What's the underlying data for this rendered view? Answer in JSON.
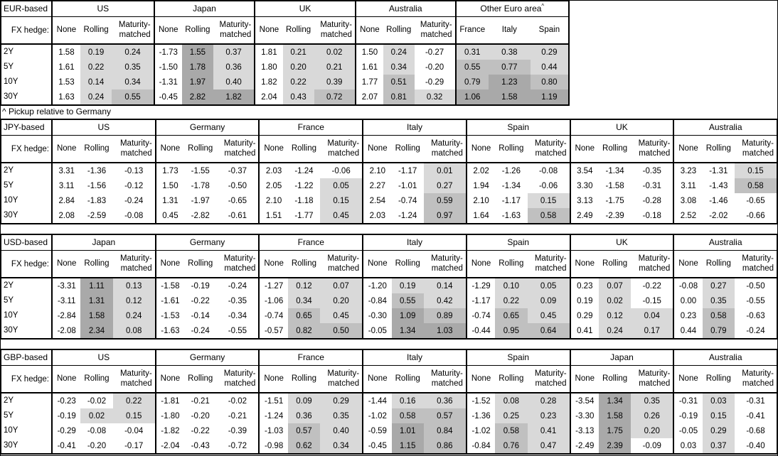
{
  "page": {
    "note": "^ Pickup relative to Germany"
  },
  "labels": {
    "fx_hedge": "FX hedge:",
    "tenors": [
      "2Y",
      "5Y",
      "10Y",
      "30Y"
    ]
  },
  "col_headers": [
    "None",
    "Rolling",
    "Maturity-matched"
  ],
  "colors": {
    "shade_light": "#d9d9d9",
    "shade_mid": "#c0c0c0",
    "shade_dark": "#a9a9a9",
    "border": "#000000"
  },
  "tables": [
    {
      "base": "EUR-based",
      "groups": [
        {
          "name": "US",
          "rows": [
            [
              "1.58",
              "0.19",
              "0.24"
            ],
            [
              "1.61",
              "0.22",
              "0.35"
            ],
            [
              "1.53",
              "0.14",
              "0.34"
            ],
            [
              "1.63",
              "0.24",
              "0.55"
            ]
          ]
        },
        {
          "name": "Japan",
          "rows": [
            [
              "-1.73",
              "1.55",
              "0.37"
            ],
            [
              "-1.50",
              "1.78",
              "0.36"
            ],
            [
              "-1.31",
              "1.97",
              "0.40"
            ],
            [
              "-0.45",
              "2.82",
              "1.82"
            ]
          ]
        },
        {
          "name": "UK",
          "rows": [
            [
              "1.81",
              "0.21",
              "0.02"
            ],
            [
              "1.80",
              "0.20",
              "0.21"
            ],
            [
              "1.82",
              "0.22",
              "0.39"
            ],
            [
              "2.04",
              "0.43",
              "0.72"
            ]
          ]
        },
        {
          "name": "Australia",
          "rows": [
            [
              "1.50",
              "0.24",
              "-0.27"
            ],
            [
              "1.61",
              "0.34",
              "-0.20"
            ],
            [
              "1.77",
              "0.51",
              "-0.29"
            ],
            [
              "2.07",
              "0.81",
              "0.32"
            ]
          ]
        },
        {
          "name": "Other Euro area",
          "superscript": "^",
          "all_shaded": true,
          "cols": [
            "France",
            "Italy",
            "Spain"
          ],
          "rows": [
            [
              "0.31",
              "0.38",
              "0.29"
            ],
            [
              "0.55",
              "0.77",
              "0.44"
            ],
            [
              "0.79",
              "1.23",
              "0.80"
            ],
            [
              "1.06",
              "1.58",
              "1.19"
            ]
          ]
        }
      ]
    },
    {
      "base": "JPY-based",
      "groups": [
        {
          "name": "US",
          "rows": [
            [
              "3.31",
              "-1.36",
              "-0.13"
            ],
            [
              "3.11",
              "-1.56",
              "-0.12"
            ],
            [
              "2.84",
              "-1.83",
              "-0.24"
            ],
            [
              "2.08",
              "-2.59",
              "-0.08"
            ]
          ]
        },
        {
          "name": "Germany",
          "rows": [
            [
              "1.73",
              "-1.55",
              "-0.37"
            ],
            [
              "1.50",
              "-1.78",
              "-0.50"
            ],
            [
              "1.31",
              "-1.97",
              "-0.65"
            ],
            [
              "0.45",
              "-2.82",
              "-0.61"
            ]
          ]
        },
        {
          "name": "France",
          "rows": [
            [
              "2.03",
              "-1.24",
              "-0.06"
            ],
            [
              "2.05",
              "-1.22",
              "0.05"
            ],
            [
              "2.10",
              "-1.18",
              "0.15"
            ],
            [
              "1.51",
              "-1.77",
              "0.45"
            ]
          ]
        },
        {
          "name": "Italy",
          "rows": [
            [
              "2.10",
              "-1.17",
              "0.01"
            ],
            [
              "2.27",
              "-1.01",
              "0.27"
            ],
            [
              "2.54",
              "-0.74",
              "0.59"
            ],
            [
              "2.03",
              "-1.24",
              "0.97"
            ]
          ]
        },
        {
          "name": "Spain",
          "rows": [
            [
              "2.02",
              "-1.26",
              "-0.08"
            ],
            [
              "1.94",
              "-1.34",
              "-0.06"
            ],
            [
              "2.10",
              "-1.17",
              "0.15"
            ],
            [
              "1.64",
              "-1.63",
              "0.58"
            ]
          ]
        },
        {
          "name": "UK",
          "rows": [
            [
              "3.54",
              "-1.34",
              "-0.35"
            ],
            [
              "3.30",
              "-1.58",
              "-0.31"
            ],
            [
              "3.13",
              "-1.75",
              "-0.28"
            ],
            [
              "2.49",
              "-2.39",
              "-0.18"
            ]
          ]
        },
        {
          "name": "Australia",
          "rows": [
            [
              "3.23",
              "-1.31",
              "0.15"
            ],
            [
              "3.11",
              "-1.43",
              "0.58"
            ],
            [
              "3.08",
              "-1.46",
              "-0.65"
            ],
            [
              "2.52",
              "-2.02",
              "-0.66"
            ]
          ]
        }
      ]
    },
    {
      "base": "USD-based",
      "groups": [
        {
          "name": "Japan",
          "rows": [
            [
              "-3.31",
              "1.11",
              "0.13"
            ],
            [
              "-3.11",
              "1.31",
              "0.12"
            ],
            [
              "-2.84",
              "1.58",
              "0.24"
            ],
            [
              "-2.08",
              "2.34",
              "0.08"
            ]
          ]
        },
        {
          "name": "Germany",
          "rows": [
            [
              "-1.58",
              "-0.19",
              "-0.24"
            ],
            [
              "-1.61",
              "-0.22",
              "-0.35"
            ],
            [
              "-1.53",
              "-0.14",
              "-0.34"
            ],
            [
              "-1.63",
              "-0.24",
              "-0.55"
            ]
          ]
        },
        {
          "name": "France",
          "rows": [
            [
              "-1.27",
              "0.12",
              "0.07"
            ],
            [
              "-1.06",
              "0.34",
              "0.20"
            ],
            [
              "-0.74",
              "0.65",
              "0.45"
            ],
            [
              "-0.57",
              "0.82",
              "0.50"
            ]
          ]
        },
        {
          "name": "Italy",
          "rows": [
            [
              "-1.20",
              "0.19",
              "0.14"
            ],
            [
              "-0.84",
              "0.55",
              "0.42"
            ],
            [
              "-0.30",
              "1.09",
              "0.89"
            ],
            [
              "-0.05",
              "1.34",
              "1.03"
            ]
          ]
        },
        {
          "name": "Spain",
          "rows": [
            [
              "-1.29",
              "0.10",
              "0.05"
            ],
            [
              "-1.17",
              "0.22",
              "0.09"
            ],
            [
              "-0.74",
              "0.65",
              "0.45"
            ],
            [
              "-0.44",
              "0.95",
              "0.64"
            ]
          ]
        },
        {
          "name": "UK",
          "rows": [
            [
              "0.23",
              "0.07",
              "-0.22"
            ],
            [
              "0.19",
              "0.02",
              "-0.15"
            ],
            [
              "0.29",
              "0.12",
              "0.04"
            ],
            [
              "0.41",
              "0.24",
              "0.17"
            ]
          ]
        },
        {
          "name": "Australia",
          "rows": [
            [
              "-0.08",
              "0.27",
              "-0.50"
            ],
            [
              "0.00",
              "0.35",
              "-0.55"
            ],
            [
              "0.23",
              "0.58",
              "-0.63"
            ],
            [
              "0.44",
              "0.79",
              "-0.24"
            ]
          ]
        }
      ]
    },
    {
      "base": "GBP-based",
      "groups": [
        {
          "name": "US",
          "rows": [
            [
              "-0.23",
              "-0.02",
              "0.22"
            ],
            [
              "-0.19",
              "0.02",
              "0.15"
            ],
            [
              "-0.29",
              "-0.08",
              "-0.04"
            ],
            [
              "-0.41",
              "-0.20",
              "-0.17"
            ]
          ]
        },
        {
          "name": "Germany",
          "rows": [
            [
              "-1.81",
              "-0.21",
              "-0.02"
            ],
            [
              "-1.80",
              "-0.20",
              "-0.21"
            ],
            [
              "-1.82",
              "-0.22",
              "-0.39"
            ],
            [
              "-2.04",
              "-0.43",
              "-0.72"
            ]
          ]
        },
        {
          "name": "France",
          "rows": [
            [
              "-1.51",
              "0.09",
              "0.29"
            ],
            [
              "-1.24",
              "0.36",
              "0.35"
            ],
            [
              "-1.03",
              "0.57",
              "0.40"
            ],
            [
              "-0.98",
              "0.62",
              "0.34"
            ]
          ]
        },
        {
          "name": "Italy",
          "rows": [
            [
              "-1.44",
              "0.16",
              "0.36"
            ],
            [
              "-1.02",
              "0.58",
              "0.57"
            ],
            [
              "-0.59",
              "1.01",
              "0.84"
            ],
            [
              "-0.45",
              "1.15",
              "0.86"
            ]
          ]
        },
        {
          "name": "Spain",
          "rows": [
            [
              "-1.52",
              "0.08",
              "0.28"
            ],
            [
              "-1.36",
              "0.25",
              "0.23"
            ],
            [
              "-1.02",
              "0.58",
              "0.41"
            ],
            [
              "-0.84",
              "0.76",
              "0.47"
            ]
          ]
        },
        {
          "name": "Japan",
          "rows": [
            [
              "-3.54",
              "1.34",
              "0.35"
            ],
            [
              "-3.30",
              "1.58",
              "0.26"
            ],
            [
              "-3.13",
              "1.75",
              "0.20"
            ],
            [
              "-2.49",
              "2.39",
              "-0.09"
            ]
          ]
        },
        {
          "name": "Australia",
          "rows": [
            [
              "-0.31",
              "0.03",
              "-0.31"
            ],
            [
              "-0.19",
              "0.15",
              "-0.41"
            ],
            [
              "-0.05",
              "0.29",
              "-0.68"
            ],
            [
              "0.03",
              "0.37",
              "-0.40"
            ]
          ]
        }
      ]
    }
  ]
}
